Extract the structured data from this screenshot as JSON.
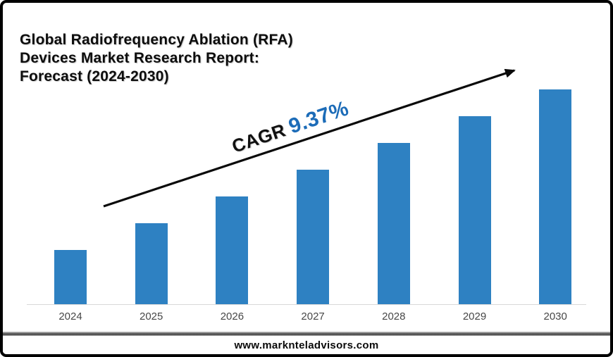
{
  "frame": {
    "border_color": "#000000",
    "background": "#ffffff"
  },
  "title": {
    "lines": [
      "Global Radiofrequency Ablation (RFA)",
      "Devices Market Research Report:",
      "Forecast (2024-2030)"
    ],
    "color": "#0d0d0d"
  },
  "annotation": {
    "label": "CAGR",
    "value": "9.37%",
    "label_color": "#111111",
    "value_color": "#1c6cb8",
    "arrow_direction": "up-right",
    "arrow_color": "#0a0a0a"
  },
  "footer": {
    "website": "www.marknteladvisors.com"
  },
  "chart_data": {
    "type": "bar",
    "title": "Global Radiofrequency Ablation (RFA) Devices Market Research Report: Forecast (2024-2030)",
    "categories": [
      "2024",
      "2025",
      "2026",
      "2027",
      "2028",
      "2029",
      "2030"
    ],
    "values": [
      77,
      115,
      153,
      191,
      229,
      267,
      305
    ],
    "values_unit": "relative height (no y-axis scale shown)",
    "xlabel": "",
    "ylabel": "",
    "ylim": [
      0,
      340
    ],
    "grid": false,
    "legend": false,
    "bar_color": "#2e81c2",
    "axis_line_color": "#d9d9d9",
    "tick_label_color": "#474747",
    "trend_annotation": "CAGR 9.37%"
  }
}
